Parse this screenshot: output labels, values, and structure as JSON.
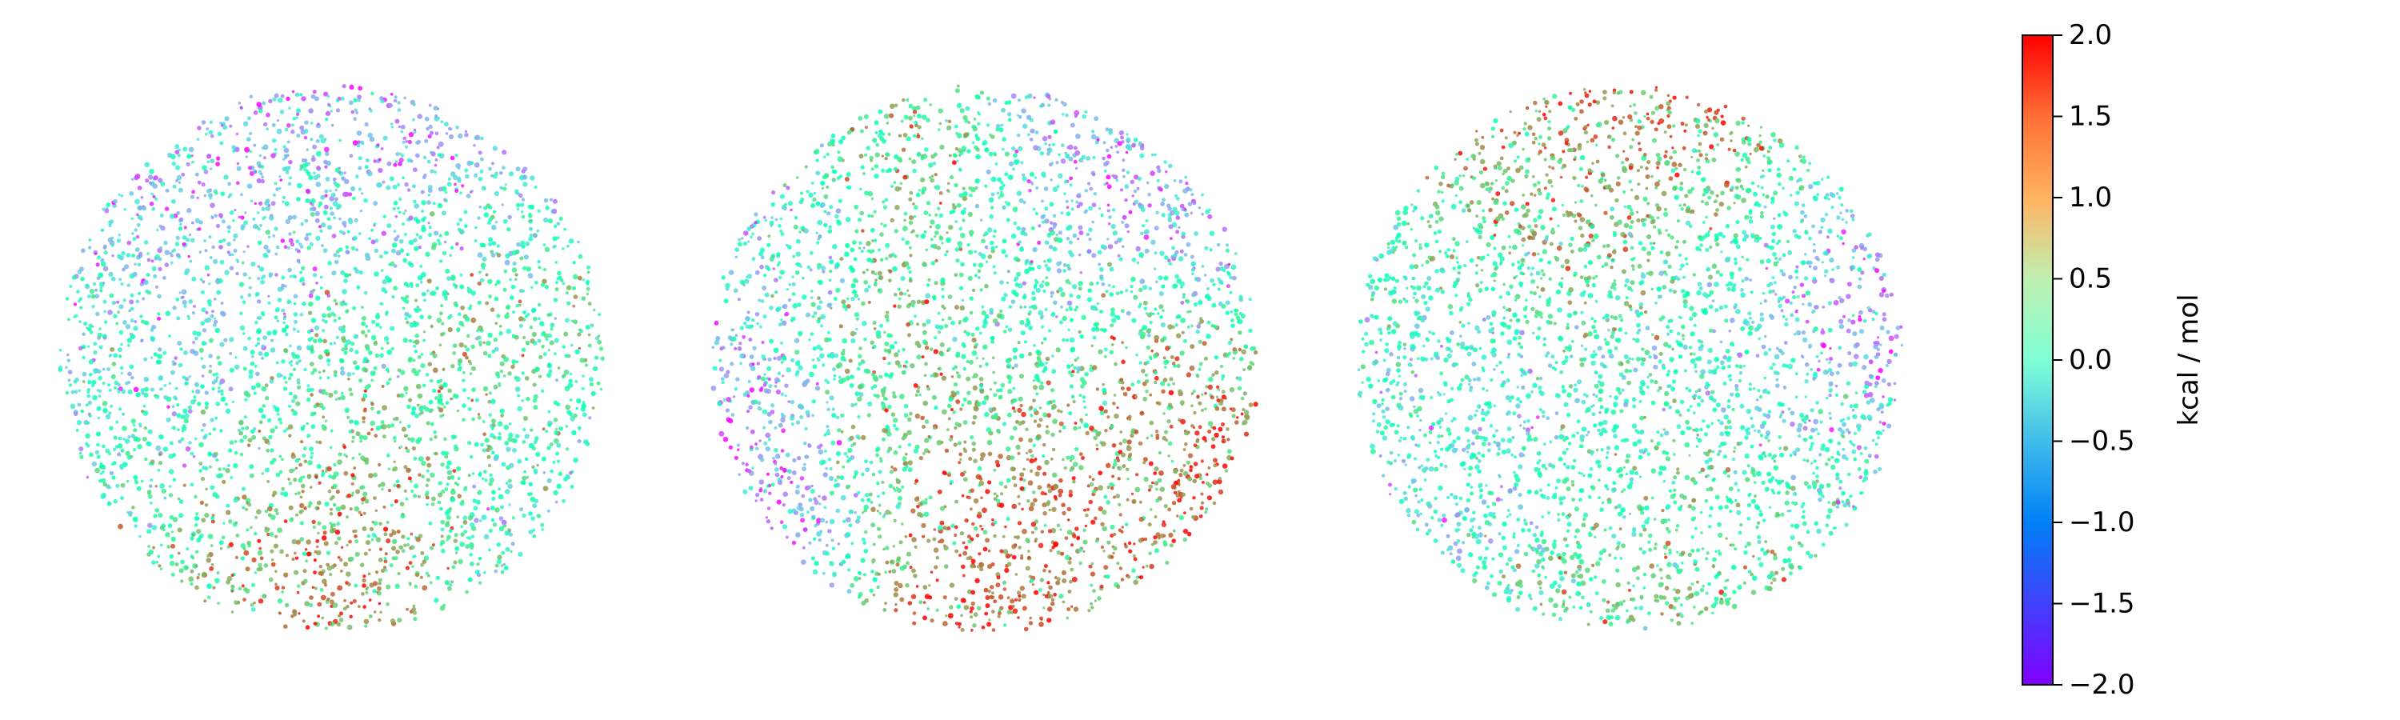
{
  "chart_data": {
    "type": "scatter",
    "title": "",
    "panels": [
      {
        "name": "",
        "description_points": "dense circular cloud of clustered points colored by value",
        "clusters": [
          {
            "cx": 0.15,
            "cy": -0.55,
            "r": 0.35,
            "value": -1.2
          },
          {
            "cx": -0.35,
            "cy": -0.15,
            "r": 0.3,
            "value": -1.4
          },
          {
            "cx": 0.3,
            "cy": 0.1,
            "r": 0.3,
            "value": 1.4
          },
          {
            "cx": 0.45,
            "cy": -0.1,
            "r": 0.25,
            "value": 0.7
          },
          {
            "cx": -0.1,
            "cy": 0.45,
            "r": 0.35,
            "value": 1.2
          },
          {
            "cx": 0.1,
            "cy": 0.7,
            "r": 0.25,
            "value": 1.7
          },
          {
            "cx": -0.6,
            "cy": 0.2,
            "r": 0.3,
            "value": -0.3
          },
          {
            "cx": 0.55,
            "cy": 0.45,
            "r": 0.3,
            "value": -0.6
          },
          {
            "cx": 0.0,
            "cy": 0.0,
            "r": 0.4,
            "value": 0.2
          }
        ]
      },
      {
        "name": "",
        "clusters": [
          {
            "cx": -0.2,
            "cy": -0.4,
            "r": 0.25,
            "value": 1.3
          },
          {
            "cx": 0.2,
            "cy": -0.25,
            "r": 0.25,
            "value": -1.6
          },
          {
            "cx": 0.4,
            "cy": -0.1,
            "r": 0.2,
            "value": 1.6
          },
          {
            "cx": -0.3,
            "cy": 0.05,
            "r": 0.25,
            "value": 1.9
          },
          {
            "cx": 0.1,
            "cy": 0.05,
            "r": 0.3,
            "value": 0.3
          },
          {
            "cx": 0.55,
            "cy": 0.3,
            "r": 0.2,
            "value": 1.5
          },
          {
            "cx": -0.05,
            "cy": 0.4,
            "r": 0.25,
            "value": 1.8
          },
          {
            "cx": -0.6,
            "cy": 0.25,
            "r": 0.25,
            "value": -1.6
          },
          {
            "cx": -0.55,
            "cy": -0.3,
            "r": 0.25,
            "value": -0.7
          },
          {
            "cx": 0.45,
            "cy": -0.55,
            "r": 0.25,
            "value": -1.1
          }
        ]
      },
      {
        "name": "",
        "clusters": [
          {
            "cx": 0.1,
            "cy": -0.55,
            "r": 0.35,
            "value": 1.7
          },
          {
            "cx": -0.2,
            "cy": -0.35,
            "r": 0.3,
            "value": 1.3
          },
          {
            "cx": 0.55,
            "cy": -0.2,
            "r": 0.3,
            "value": -1.5
          },
          {
            "cx": -0.3,
            "cy": 0.2,
            "r": 0.35,
            "value": -0.8
          },
          {
            "cx": 0.2,
            "cy": 0.25,
            "r": 0.3,
            "value": 0.6
          },
          {
            "cx": 0.0,
            "cy": 0.55,
            "r": 0.3,
            "value": 0.9
          },
          {
            "cx": -0.65,
            "cy": 0.1,
            "r": 0.25,
            "value": -0.2
          },
          {
            "cx": 0.0,
            "cy": -0.05,
            "r": 0.4,
            "value": -0.9
          }
        ]
      }
    ],
    "colorbar": {
      "colormap": "rainbow",
      "label": "kcal / mol",
      "min": -2.0,
      "max": 2.0,
      "ticks": [
        {
          "value": 2.0,
          "label": "2.0"
        },
        {
          "value": 1.5,
          "label": "1.5"
        },
        {
          "value": 1.0,
          "label": "1.0"
        },
        {
          "value": 0.5,
          "label": "0.5"
        },
        {
          "value": 0.0,
          "label": "0.0"
        },
        {
          "value": -0.5,
          "label": "−0.5"
        },
        {
          "value": -1.0,
          "label": "−1.0"
        },
        {
          "value": -1.5,
          "label": "−1.5"
        },
        {
          "value": -2.0,
          "label": "−2.0"
        }
      ]
    },
    "legend": "none",
    "grid": false,
    "axes_visible": false
  }
}
